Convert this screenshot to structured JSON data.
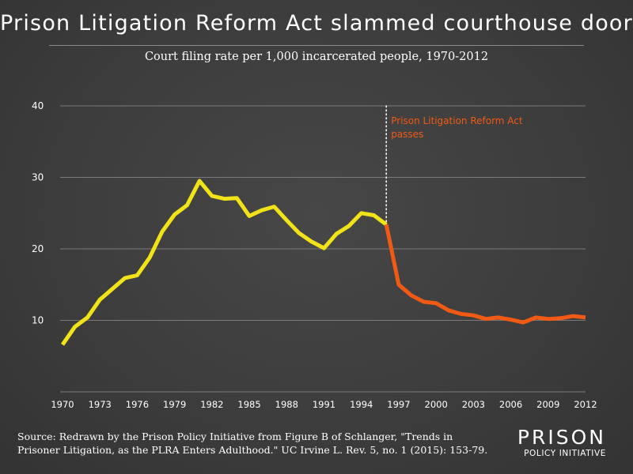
{
  "title": "Prison Litigation Reform Act slammed courthouse door",
  "subtitle": "Court filing rate per 1,000 incarcerated people, 1970-2012",
  "source": "Source: Redrawn by the Prison Policy Initiative from Figure B of Schlanger, \"Trends in Prisoner Litigation, as the PLRA Enters Adulthood.\" UC Irvine L. Rev. 5, no. 1 (2015): 153-79.",
  "logo": {
    "main": "PRISON",
    "sub": "POLICY INITIATIVE"
  },
  "colors": {
    "pre_plra": "#f2e218",
    "post_plra": "#f05a14",
    "annotation": "#f05a14",
    "grid": "#7a7a7a",
    "background": "#3d3d3d"
  },
  "chart_data": {
    "type": "line",
    "title": "Court filing rate per 1,000 incarcerated people, 1970-2012",
    "xlabel": "",
    "ylabel": "",
    "xlim": [
      1970,
      2012
    ],
    "ylim": [
      0,
      40
    ],
    "yticks": [
      10,
      20,
      30,
      40
    ],
    "xticks": [
      1970,
      1973,
      1976,
      1979,
      1982,
      1985,
      1988,
      1991,
      1994,
      1997,
      2000,
      2003,
      2006,
      2009,
      2012
    ],
    "grid": true,
    "series": [
      {
        "color": "#f2e218",
        "x": [
          1970,
          1971,
          1972,
          1973,
          1974,
          1975,
          1976,
          1977,
          1978,
          1979,
          1980,
          1981,
          1982,
          1983,
          1984,
          1985,
          1986,
          1987,
          1988,
          1989,
          1990,
          1991,
          1992,
          1993,
          1994,
          1995,
          1996
        ],
        "y": [
          6.6,
          9.1,
          10.4,
          12.9,
          14.4,
          15.9,
          16.3,
          18.8,
          22.4,
          24.8,
          26.1,
          29.5,
          27.4,
          27.0,
          27.1,
          24.6,
          25.4,
          25.9,
          24.0,
          22.2,
          21.0,
          20.1,
          22.1,
          23.2,
          25.0,
          24.7,
          23.4
        ]
      },
      {
        "color": "#f05a14",
        "x": [
          1996,
          1997,
          1998,
          1999,
          2000,
          2001,
          2002,
          2003,
          2004,
          2005,
          2006,
          2007,
          2008,
          2009,
          2010,
          2011,
          2012
        ],
        "y": [
          23.4,
          15.0,
          13.5,
          12.6,
          12.4,
          11.4,
          10.9,
          10.7,
          10.2,
          10.4,
          10.1,
          9.7,
          10.4,
          10.2,
          10.3,
          10.6,
          10.4
        ]
      }
    ],
    "annotations": [
      {
        "x": 1996,
        "label_line1": "Prison Litigation Reform Act",
        "label_line2": "passes",
        "style": "dotted-vertical"
      }
    ]
  }
}
